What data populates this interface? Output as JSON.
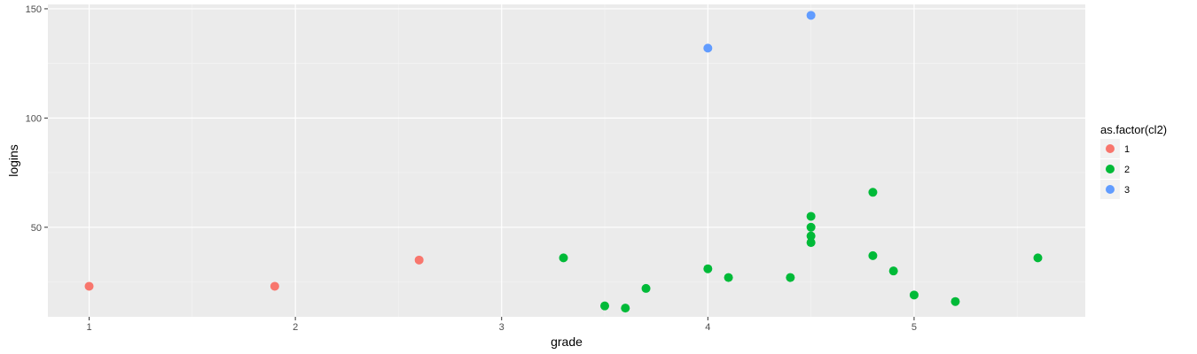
{
  "chart_data": {
    "type": "scatter",
    "xlabel": "grade",
    "ylabel": "logins",
    "xlim": [
      0.8,
      5.83
    ],
    "ylim": [
      9,
      152
    ],
    "x_ticks": [
      1,
      2,
      3,
      4,
      5
    ],
    "y_ticks": [
      50,
      100,
      150
    ],
    "grid": true,
    "legend": {
      "title": "as.factor(cl2)",
      "position": "right"
    },
    "series": [
      {
        "name": "1",
        "color": "#F8766D",
        "points": [
          [
            1.0,
            23
          ],
          [
            1.9,
            23
          ],
          [
            2.6,
            35
          ]
        ]
      },
      {
        "name": "2",
        "color": "#00BA38",
        "points": [
          [
            3.3,
            36
          ],
          [
            3.5,
            14
          ],
          [
            3.6,
            13
          ],
          [
            3.7,
            22
          ],
          [
            4.0,
            31
          ],
          [
            4.1,
            27
          ],
          [
            4.4,
            27
          ],
          [
            4.5,
            55
          ],
          [
            4.5,
            50
          ],
          [
            4.5,
            46
          ],
          [
            4.5,
            43
          ],
          [
            4.8,
            66
          ],
          [
            4.8,
            37
          ],
          [
            4.9,
            30
          ],
          [
            5.0,
            19
          ],
          [
            5.2,
            16
          ],
          [
            5.6,
            36
          ]
        ]
      },
      {
        "name": "3",
        "color": "#619CFF",
        "points": [
          [
            4.0,
            132
          ],
          [
            4.5,
            147
          ]
        ]
      }
    ]
  }
}
